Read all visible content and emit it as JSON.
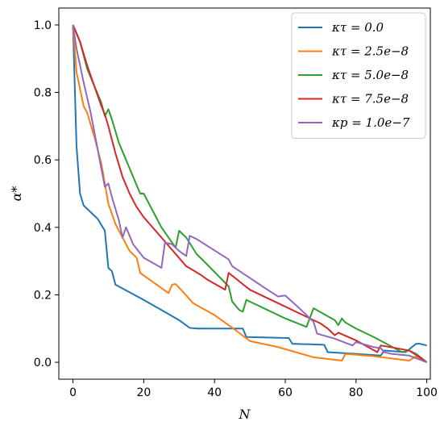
{
  "chart_data": {
    "type": "line",
    "xlabel": "N",
    "ylabel": "α*",
    "xlim": [
      -4,
      101
    ],
    "ylim": [
      -0.05,
      1.05
    ],
    "xticks": [
      "0",
      "20",
      "40",
      "60",
      "80",
      "100"
    ],
    "yticks": [
      "0.0",
      "0.2",
      "0.4",
      "0.6",
      "0.8",
      "1.0"
    ],
    "legend_position": "top-right",
    "grid": false,
    "series": [
      {
        "name": "κτ = 0.0",
        "color": "#1f77b4",
        "points": [
          [
            0,
            1.0
          ],
          [
            1,
            0.64
          ],
          [
            2,
            0.5
          ],
          [
            3,
            0.465
          ],
          [
            5,
            0.445
          ],
          [
            7,
            0.425
          ],
          [
            9,
            0.39
          ],
          [
            10,
            0.28
          ],
          [
            11,
            0.27
          ],
          [
            12,
            0.23
          ],
          [
            20,
            0.185
          ],
          [
            25,
            0.155
          ],
          [
            30,
            0.125
          ],
          [
            33,
            0.102
          ],
          [
            35,
            0.1
          ],
          [
            48,
            0.1
          ],
          [
            49,
            0.075
          ],
          [
            61,
            0.072
          ],
          [
            62,
            0.055
          ],
          [
            71,
            0.052
          ],
          [
            72,
            0.03
          ],
          [
            80,
            0.025
          ],
          [
            87,
            0.02
          ],
          [
            88,
            0.035
          ],
          [
            94,
            0.03
          ],
          [
            97,
            0.055
          ],
          [
            98,
            0.055
          ],
          [
            100,
            0.05
          ]
        ]
      },
      {
        "name": "κτ = 2.5e−8",
        "color": "#ff7f0e",
        "points": [
          [
            0,
            1.0
          ],
          [
            1,
            0.86
          ],
          [
            2,
            0.81
          ],
          [
            3,
            0.76
          ],
          [
            4,
            0.74
          ],
          [
            6,
            0.67
          ],
          [
            8,
            0.59
          ],
          [
            10,
            0.47
          ],
          [
            12,
            0.41
          ],
          [
            14,
            0.37
          ],
          [
            16,
            0.33
          ],
          [
            18,
            0.31
          ],
          [
            19,
            0.265
          ],
          [
            23,
            0.235
          ],
          [
            27,
            0.205
          ],
          [
            28,
            0.23
          ],
          [
            29,
            0.232
          ],
          [
            31,
            0.21
          ],
          [
            34,
            0.175
          ],
          [
            40,
            0.14
          ],
          [
            46,
            0.095
          ],
          [
            50,
            0.063
          ],
          [
            58,
            0.045
          ],
          [
            68,
            0.015
          ],
          [
            76,
            0.005
          ],
          [
            77,
            0.025
          ],
          [
            85,
            0.018
          ],
          [
            95,
            0.005
          ],
          [
            97,
            0.018
          ],
          [
            100,
            0.0
          ]
        ]
      },
      {
        "name": "κτ = 5.0e−8",
        "color": "#2ca02c",
        "points": [
          [
            0,
            1.0
          ],
          [
            2,
            0.95
          ],
          [
            4,
            0.87
          ],
          [
            6,
            0.82
          ],
          [
            8,
            0.77
          ],
          [
            9,
            0.73
          ],
          [
            10,
            0.75
          ],
          [
            11,
            0.72
          ],
          [
            13,
            0.65
          ],
          [
            15,
            0.6
          ],
          [
            17,
            0.55
          ],
          [
            19,
            0.5
          ],
          [
            20,
            0.5
          ],
          [
            22,
            0.46
          ],
          [
            25,
            0.4
          ],
          [
            29,
            0.34
          ],
          [
            30,
            0.39
          ],
          [
            32,
            0.37
          ],
          [
            35,
            0.32
          ],
          [
            37,
            0.3
          ],
          [
            44,
            0.225
          ],
          [
            45,
            0.18
          ],
          [
            47,
            0.155
          ],
          [
            48,
            0.15
          ],
          [
            49,
            0.185
          ],
          [
            52,
            0.17
          ],
          [
            60,
            0.13
          ],
          [
            66,
            0.105
          ],
          [
            68,
            0.16
          ],
          [
            74,
            0.125
          ],
          [
            75,
            0.11
          ],
          [
            76,
            0.13
          ],
          [
            77,
            0.118
          ],
          [
            80,
            0.1
          ],
          [
            85,
            0.075
          ],
          [
            93,
            0.03
          ],
          [
            95,
            0.035
          ],
          [
            97,
            0.025
          ],
          [
            100,
            0.0
          ]
        ]
      },
      {
        "name": "κτ = 7.5e−8",
        "color": "#d62728",
        "points": [
          [
            0,
            1.0
          ],
          [
            2,
            0.95
          ],
          [
            4,
            0.88
          ],
          [
            6,
            0.82
          ],
          [
            8,
            0.76
          ],
          [
            9,
            0.735
          ],
          [
            10,
            0.7
          ],
          [
            12,
            0.62
          ],
          [
            14,
            0.55
          ],
          [
            16,
            0.5
          ],
          [
            18,
            0.46
          ],
          [
            20,
            0.43
          ],
          [
            25,
            0.37
          ],
          [
            32,
            0.285
          ],
          [
            36,
            0.26
          ],
          [
            38,
            0.245
          ],
          [
            43,
            0.215
          ],
          [
            44,
            0.265
          ],
          [
            50,
            0.215
          ],
          [
            60,
            0.165
          ],
          [
            70,
            0.115
          ],
          [
            72,
            0.1
          ],
          [
            74,
            0.08
          ],
          [
            75,
            0.088
          ],
          [
            80,
            0.065
          ],
          [
            86,
            0.03
          ],
          [
            87,
            0.05
          ],
          [
            95,
            0.035
          ],
          [
            98,
            0.015
          ],
          [
            100,
            0.0
          ]
        ]
      },
      {
        "name": "κp = 1.0e−7",
        "color": "#9467bd",
        "points": [
          [
            0,
            1.0
          ],
          [
            1,
            0.93
          ],
          [
            3,
            0.83
          ],
          [
            5,
            0.74
          ],
          [
            7,
            0.63
          ],
          [
            9,
            0.52
          ],
          [
            10,
            0.53
          ],
          [
            11,
            0.49
          ],
          [
            13,
            0.42
          ],
          [
            14,
            0.37
          ],
          [
            15,
            0.4
          ],
          [
            17,
            0.35
          ],
          [
            20,
            0.31
          ],
          [
            25,
            0.28
          ],
          [
            26,
            0.355
          ],
          [
            28,
            0.35
          ],
          [
            30,
            0.33
          ],
          [
            32,
            0.315
          ],
          [
            33,
            0.375
          ],
          [
            35,
            0.365
          ],
          [
            44,
            0.305
          ],
          [
            45,
            0.285
          ],
          [
            50,
            0.25
          ],
          [
            55,
            0.215
          ],
          [
            58,
            0.195
          ],
          [
            60,
            0.198
          ],
          [
            64,
            0.16
          ],
          [
            68,
            0.12
          ],
          [
            69,
            0.085
          ],
          [
            74,
            0.07
          ],
          [
            79,
            0.05
          ],
          [
            80,
            0.06
          ],
          [
            85,
            0.045
          ],
          [
            87,
            0.042
          ],
          [
            88,
            0.03
          ],
          [
            90,
            0.025
          ],
          [
            95,
            0.02
          ],
          [
            100,
            0.0
          ]
        ]
      }
    ]
  }
}
